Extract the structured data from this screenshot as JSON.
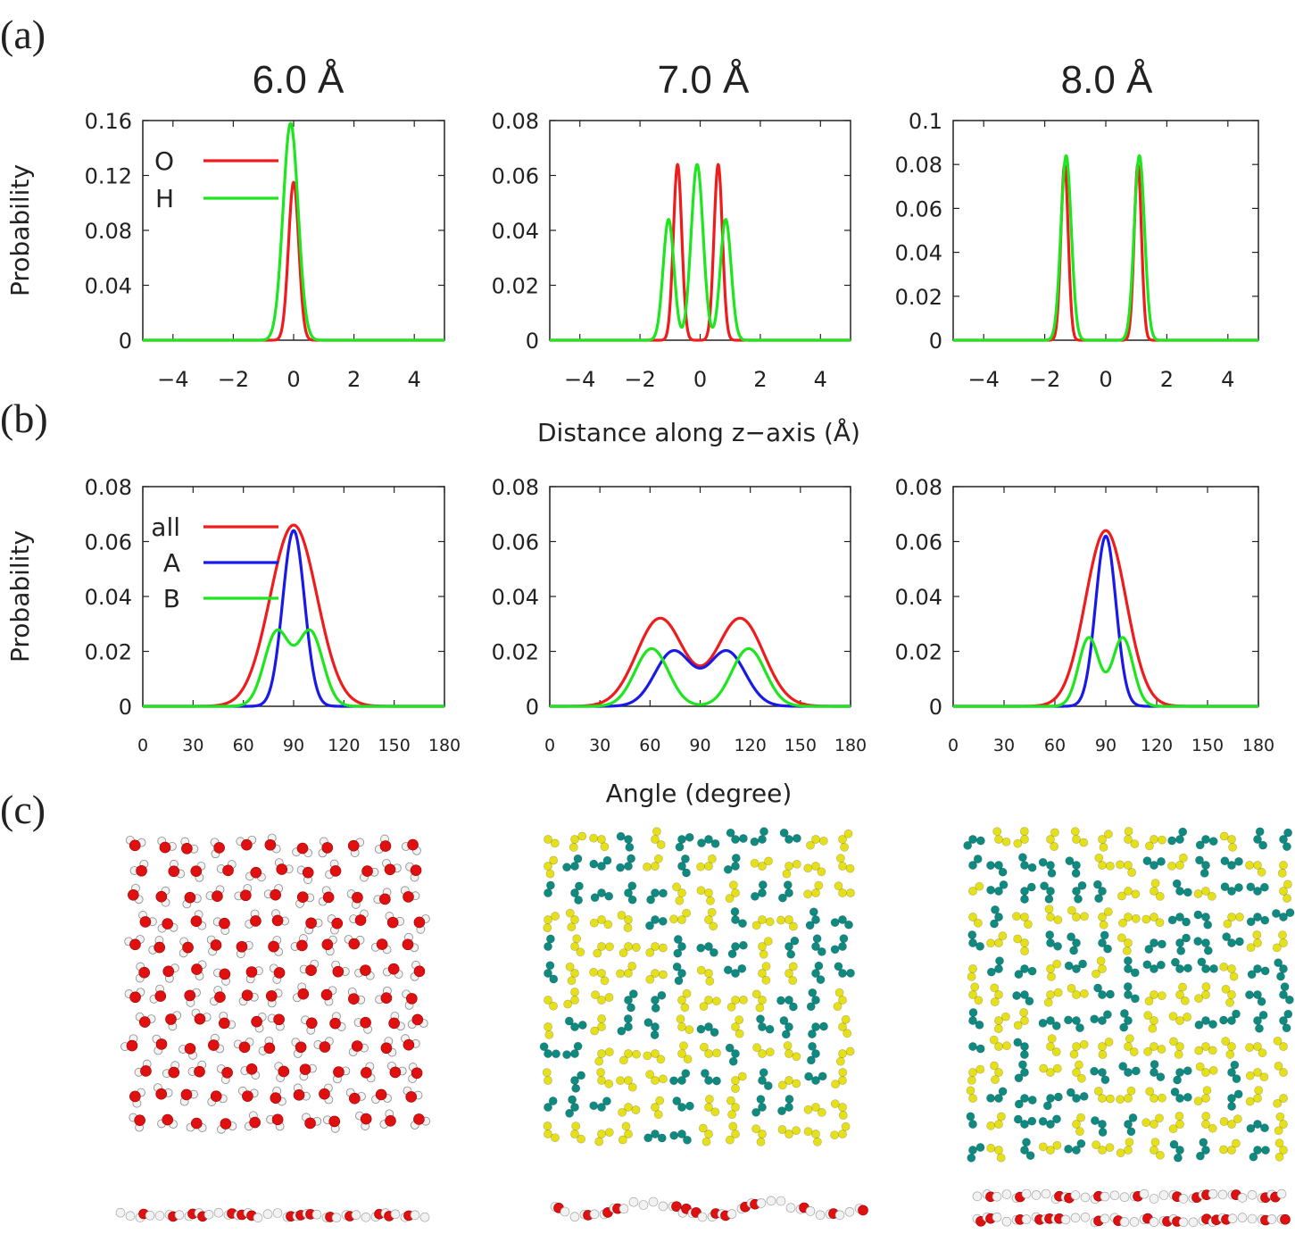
{
  "panel_labels": [
    "(a)",
    "(b)",
    "(c)"
  ],
  "column_titles": [
    "6.0 Å",
    "7.0 Å",
    "8.0 Å"
  ],
  "row_a": {
    "ylabel": "Probability",
    "xlabel": "Distance along z−axis (Å)"
  },
  "row_b": {
    "ylabel": "Probability",
    "xlabel": "Angle (degree)"
  },
  "colors": {
    "red": "#ee1c1c",
    "green": "#1ee61e",
    "blue": "#1a1ae6",
    "oxygen": "#e01010",
    "hydrogen": "#f2f2f2",
    "teal": "#0f8a80",
    "yellow": "#e6e01a"
  },
  "chart_data": [
    {
      "type": "line",
      "panel": "a",
      "column": "6.0 Å",
      "xlim": [
        -5,
        5
      ],
      "ylim": [
        0,
        0.16
      ],
      "xticks": [
        -4,
        -2,
        0,
        2,
        4
      ],
      "xtick_labels": [
        "−4",
        "−2",
        "0",
        "2",
        "4"
      ],
      "yticks": [
        0,
        0.04,
        0.08,
        0.12,
        0.16
      ],
      "ytick_labels": [
        "0",
        "0.04",
        "0.08",
        "0.12",
        "0.16"
      ],
      "legend": [
        {
          "label": "O",
          "color": "red"
        },
        {
          "label": "H",
          "color": "green"
        }
      ],
      "series": [
        {
          "name": "O",
          "color": "red",
          "peaks": [
            [
              0.0,
              0.115,
              0.17
            ]
          ]
        },
        {
          "name": "H",
          "color": "green",
          "peaks": [
            [
              -0.1,
              0.158,
              0.25
            ]
          ]
        }
      ]
    },
    {
      "type": "line",
      "panel": "a",
      "column": "7.0 Å",
      "xlim": [
        -5,
        5
      ],
      "ylim": [
        0,
        0.08
      ],
      "xticks": [
        -4,
        -2,
        0,
        2,
        4
      ],
      "xtick_labels": [
        "−4",
        "−2",
        "0",
        "2",
        "4"
      ],
      "yticks": [
        0,
        0.02,
        0.04,
        0.06,
        0.08
      ],
      "ytick_labels": [
        "0",
        "0.02",
        "0.04",
        "0.06",
        "0.08"
      ],
      "series": [
        {
          "name": "O",
          "color": "red",
          "peaks": [
            [
              -0.75,
              0.064,
              0.14
            ],
            [
              0.6,
              0.064,
              0.14
            ]
          ]
        },
        {
          "name": "H",
          "color": "green",
          "peaks": [
            [
              -1.05,
              0.044,
              0.18
            ],
            [
              -0.1,
              0.064,
              0.2
            ],
            [
              0.85,
              0.044,
              0.18
            ]
          ]
        }
      ]
    },
    {
      "type": "line",
      "panel": "a",
      "column": "8.0 Å",
      "xlim": [
        -5,
        5
      ],
      "ylim": [
        0,
        0.1
      ],
      "xticks": [
        -4,
        -2,
        0,
        2,
        4
      ],
      "xtick_labels": [
        "−4",
        "−2",
        "0",
        "2",
        "4"
      ],
      "yticks": [
        0,
        0.02,
        0.04,
        0.06,
        0.08,
        0.1
      ],
      "ytick_labels": [
        "0",
        "0.02",
        "0.04",
        "0.06",
        "0.08",
        "0.1"
      ],
      "series": [
        {
          "name": "O",
          "color": "red",
          "peaks": [
            [
              -1.35,
              0.08,
              0.12
            ],
            [
              1.05,
              0.08,
              0.12
            ]
          ]
        },
        {
          "name": "H",
          "color": "green",
          "peaks": [
            [
              -1.3,
              0.084,
              0.17
            ],
            [
              1.1,
              0.084,
              0.17
            ]
          ]
        }
      ]
    },
    {
      "type": "line",
      "panel": "b",
      "column": "6.0 Å",
      "xlim": [
        0,
        180
      ],
      "ylim": [
        0,
        0.08
      ],
      "xticks": [
        0,
        30,
        60,
        90,
        120,
        150,
        180
      ],
      "xtick_labels": [
        "0",
        "30",
        "60",
        "90",
        "120",
        "150",
        "180"
      ],
      "yticks": [
        0,
        0.02,
        0.04,
        0.06,
        0.08
      ],
      "ytick_labels": [
        "0",
        "0.02",
        "0.04",
        "0.06",
        "0.08"
      ],
      "legend": [
        {
          "label": "all",
          "color": "red"
        },
        {
          "label": "A",
          "color": "blue"
        },
        {
          "label": "B",
          "color": "green"
        }
      ],
      "series": [
        {
          "name": "all",
          "color": "red",
          "peaks": [
            [
              90,
              0.066,
              14
            ]
          ]
        },
        {
          "name": "A",
          "color": "blue",
          "peaks": [
            [
              90,
              0.064,
              6.5
            ]
          ]
        },
        {
          "name": "B",
          "color": "green",
          "peaks": [
            [
              80,
              0.027,
              7.5
            ],
            [
              100,
              0.027,
              7.5
            ]
          ]
        }
      ]
    },
    {
      "type": "line",
      "panel": "b",
      "column": "7.0 Å",
      "xlim": [
        0,
        180
      ],
      "ylim": [
        0,
        0.08
      ],
      "xticks": [
        0,
        30,
        60,
        90,
        120,
        150,
        180
      ],
      "xtick_labels": [
        "0",
        "30",
        "60",
        "90",
        "120",
        "150",
        "180"
      ],
      "yticks": [
        0,
        0.02,
        0.04,
        0.06,
        0.08
      ],
      "ytick_labels": [
        "0",
        "0.02",
        "0.04",
        "0.06",
        "0.08"
      ],
      "series": [
        {
          "name": "all",
          "color": "red",
          "peaks": [
            [
              66,
              0.032,
              14
            ],
            [
              114,
              0.032,
              14
            ]
          ]
        },
        {
          "name": "A",
          "color": "blue",
          "peaks": [
            [
              74,
              0.02,
              11
            ],
            [
              106,
              0.02,
              11
            ]
          ]
        },
        {
          "name": "B",
          "color": "green",
          "peaks": [
            [
              61,
              0.021,
              10
            ],
            [
              119,
              0.021,
              10
            ]
          ]
        }
      ]
    },
    {
      "type": "line",
      "panel": "b",
      "column": "8.0 Å",
      "xlim": [
        0,
        180
      ],
      "ylim": [
        0,
        0.08
      ],
      "xticks": [
        0,
        30,
        60,
        90,
        120,
        150,
        180
      ],
      "xtick_labels": [
        "0",
        "30",
        "60",
        "90",
        "120",
        "150",
        "180"
      ],
      "yticks": [
        0,
        0.02,
        0.04,
        0.06,
        0.08
      ],
      "ytick_labels": [
        "0",
        "0.02",
        "0.04",
        "0.06",
        "0.08"
      ],
      "series": [
        {
          "name": "all",
          "color": "red",
          "peaks": [
            [
              90,
              0.064,
              12
            ]
          ]
        },
        {
          "name": "A",
          "color": "blue",
          "peaks": [
            [
              90,
              0.062,
              6
            ]
          ]
        },
        {
          "name": "B",
          "color": "green",
          "peaks": [
            [
              80,
              0.025,
              6
            ],
            [
              100,
              0.025,
              6
            ]
          ]
        }
      ]
    }
  ],
  "structures": [
    {
      "name": "6.0 Å",
      "top_view_species": [
        "oxygen",
        "hydrogen"
      ],
      "side_view": "single-layer"
    },
    {
      "name": "7.0 Å",
      "top_view_species": [
        "teal",
        "yellow"
      ],
      "side_view": "zigzag-layer"
    },
    {
      "name": "8.0 Å",
      "top_view_species": [
        "teal",
        "yellow"
      ],
      "side_view": "bilayer"
    }
  ]
}
